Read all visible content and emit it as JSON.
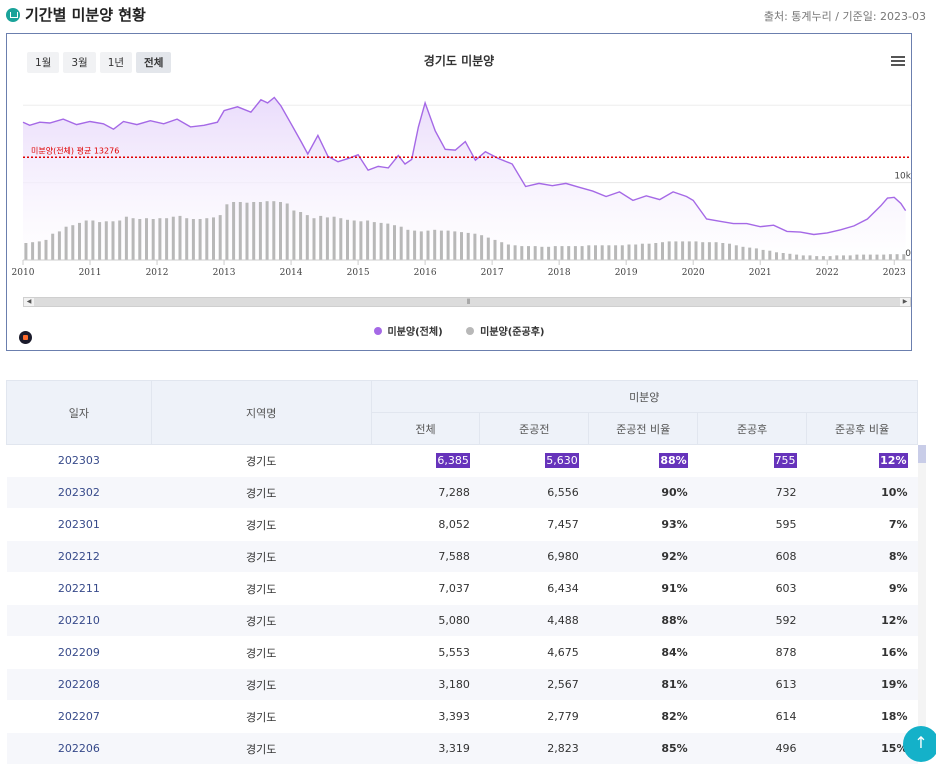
{
  "header": {
    "title": "기간별 미분양 현황",
    "source": "출처: 통계누리 / 기준일: 2023-03"
  },
  "range_buttons": [
    {
      "label": "1월",
      "active": false
    },
    {
      "label": "3월",
      "active": false
    },
    {
      "label": "1년",
      "active": false
    },
    {
      "label": "전체",
      "active": true
    }
  ],
  "colors": {
    "total": "#a569e6",
    "total_fill": "#eadcfb",
    "completed": "#b8b8b8",
    "average": "#e00000"
  },
  "chart_data": {
    "type": "area",
    "title": "경기도 미분양",
    "x_ticks": [
      "2010",
      "2011",
      "2012",
      "2013",
      "2014",
      "2015",
      "2016",
      "2017",
      "2018",
      "2019",
      "2020",
      "2021",
      "2022",
      "2023"
    ],
    "y_ticks": [
      {
        "label": "10k",
        "value": 10000
      },
      {
        "label": "0",
        "value": 0
      }
    ],
    "ylim": [
      0,
      23000
    ],
    "xlim": [
      2010.0,
      2023.25
    ],
    "average_line": {
      "label": "미분양(전체) 평균 13276",
      "value": 13276
    },
    "legend": [
      "미분양(전체)",
      "미분양(준공후)"
    ],
    "series": [
      {
        "name": "미분양(전체)",
        "type": "area",
        "x": [
          2010.0,
          2010.1,
          2010.25,
          2010.4,
          2010.6,
          2010.8,
          2011.0,
          2011.2,
          2011.35,
          2011.5,
          2011.7,
          2011.9,
          2012.1,
          2012.3,
          2012.5,
          2012.7,
          2012.9,
          2013.0,
          2013.2,
          2013.4,
          2013.55,
          2013.65,
          2013.75,
          2013.85,
          2014.0,
          2014.15,
          2014.25,
          2014.4,
          2014.55,
          2014.7,
          2014.85,
          2015.0,
          2015.15,
          2015.3,
          2015.45,
          2015.6,
          2015.7,
          2015.8,
          2015.9,
          2016.0,
          2016.15,
          2016.3,
          2016.45,
          2016.6,
          2016.75,
          2016.9,
          2017.1,
          2017.3,
          2017.5,
          2017.7,
          2017.9,
          2018.1,
          2018.3,
          2018.5,
          2018.7,
          2018.9,
          2019.1,
          2019.3,
          2019.5,
          2019.7,
          2019.9,
          2020.0,
          2020.2,
          2020.4,
          2020.6,
          2020.8,
          2021.0,
          2021.2,
          2021.4,
          2021.6,
          2021.8,
          2022.0,
          2022.2,
          2022.4,
          2022.6,
          2022.8,
          2022.9,
          2023.0,
          2023.1,
          2023.17
        ],
        "y": [
          17800,
          17400,
          17800,
          17700,
          18200,
          17500,
          17900,
          17600,
          16900,
          17900,
          17500,
          18000,
          17600,
          18200,
          17200,
          17400,
          17800,
          19300,
          19800,
          19100,
          20700,
          20300,
          21000,
          19900,
          17600,
          15300,
          13700,
          16100,
          13400,
          12700,
          13100,
          13600,
          11600,
          12100,
          11900,
          13500,
          12400,
          13000,
          17200,
          20300,
          16700,
          14300,
          14200,
          15300,
          12900,
          14000,
          13100,
          12400,
          9500,
          9900,
          9600,
          9900,
          9400,
          8900,
          8200,
          8800,
          7700,
          8300,
          7800,
          8800,
          8200,
          7700,
          5300,
          5000,
          4700,
          4700,
          4300,
          4500,
          3700,
          3600,
          3300,
          3500,
          3900,
          4400,
          5300,
          7000,
          8000,
          8100,
          7300,
          6385
        ]
      },
      {
        "name": "미분양(준공후)",
        "type": "bar",
        "x": [
          2010.05,
          2010.15,
          2010.25,
          2010.35,
          2010.45,
          2010.55,
          2010.65,
          2010.75,
          2010.85,
          2010.95,
          2011.05,
          2011.15,
          2011.25,
          2011.35,
          2011.45,
          2011.55,
          2011.65,
          2011.75,
          2011.85,
          2011.95,
          2012.05,
          2012.15,
          2012.25,
          2012.35,
          2012.45,
          2012.55,
          2012.65,
          2012.75,
          2012.85,
          2012.95,
          2013.05,
          2013.15,
          2013.25,
          2013.35,
          2013.45,
          2013.55,
          2013.65,
          2013.75,
          2013.85,
          2013.95,
          2014.05,
          2014.15,
          2014.25,
          2014.35,
          2014.45,
          2014.55,
          2014.65,
          2014.75,
          2014.85,
          2014.95,
          2015.05,
          2015.15,
          2015.25,
          2015.35,
          2015.45,
          2015.55,
          2015.65,
          2015.75,
          2015.85,
          2015.95,
          2016.05,
          2016.15,
          2016.25,
          2016.35,
          2016.45,
          2016.55,
          2016.65,
          2016.75,
          2016.85,
          2016.95,
          2017.05,
          2017.15,
          2017.25,
          2017.35,
          2017.45,
          2017.55,
          2017.65,
          2017.75,
          2017.85,
          2017.95,
          2018.05,
          2018.15,
          2018.25,
          2018.35,
          2018.45,
          2018.55,
          2018.65,
          2018.75,
          2018.85,
          2018.95,
          2019.05,
          2019.15,
          2019.25,
          2019.35,
          2019.45,
          2019.55,
          2019.65,
          2019.75,
          2019.85,
          2019.95,
          2020.05,
          2020.15,
          2020.25,
          2020.35,
          2020.45,
          2020.55,
          2020.65,
          2020.75,
          2020.85,
          2020.95,
          2021.05,
          2021.15,
          2021.25,
          2021.35,
          2021.45,
          2021.55,
          2021.65,
          2021.75,
          2021.85,
          2021.95,
          2022.05,
          2022.15,
          2022.25,
          2022.35,
          2022.45,
          2022.55,
          2022.65,
          2022.75,
          2022.85,
          2022.95,
          2023.05,
          2023.15
        ],
        "y": [
          2200,
          2300,
          2400,
          2600,
          3400,
          3700,
          4300,
          4500,
          4800,
          5100,
          5100,
          4900,
          5000,
          5000,
          5100,
          5600,
          5400,
          5300,
          5400,
          5300,
          5400,
          5400,
          5600,
          5700,
          5400,
          5300,
          5300,
          5400,
          5500,
          5800,
          7200,
          7500,
          7500,
          7400,
          7500,
          7500,
          7600,
          7600,
          7500,
          7300,
          6400,
          6200,
          5800,
          5400,
          5700,
          5500,
          5600,
          5400,
          5200,
          5100,
          5000,
          5100,
          4900,
          4800,
          4700,
          4500,
          4300,
          3900,
          3800,
          3700,
          3800,
          3900,
          3800,
          3800,
          3700,
          3600,
          3500,
          3400,
          3200,
          2900,
          2600,
          2300,
          2000,
          1900,
          1800,
          1800,
          1800,
          1700,
          1700,
          1800,
          1800,
          1800,
          1800,
          1800,
          1900,
          1900,
          1900,
          1900,
          1900,
          1900,
          2000,
          2000,
          2100,
          2100,
          2200,
          2300,
          2400,
          2400,
          2400,
          2400,
          2400,
          2300,
          2300,
          2300,
          2200,
          2100,
          1900,
          1700,
          1600,
          1500,
          1300,
          1200,
          1000,
          900,
          800,
          700,
          600,
          600,
          500,
          500,
          500,
          600,
          600,
          600,
          700,
          700,
          700,
          700,
          700,
          750,
          755,
          755
        ]
      }
    ]
  },
  "table": {
    "headers": {
      "date": "일자",
      "region": "지역명",
      "group": "미분양",
      "total": "전체",
      "pre": "준공전",
      "pre_ratio": "준공전 비율",
      "post": "준공후",
      "post_ratio": "준공후 비율"
    },
    "rows": [
      {
        "date": "202303",
        "region": "경기도",
        "total": "6,385",
        "pre": "5,630",
        "pre_ratio": "88%",
        "post": "755",
        "post_ratio": "12%"
      },
      {
        "date": "202302",
        "region": "경기도",
        "total": "7,288",
        "pre": "6,556",
        "pre_ratio": "90%",
        "post": "732",
        "post_ratio": "10%"
      },
      {
        "date": "202301",
        "region": "경기도",
        "total": "8,052",
        "pre": "7,457",
        "pre_ratio": "93%",
        "post": "595",
        "post_ratio": "7%"
      },
      {
        "date": "202212",
        "region": "경기도",
        "total": "7,588",
        "pre": "6,980",
        "pre_ratio": "92%",
        "post": "608",
        "post_ratio": "8%"
      },
      {
        "date": "202211",
        "region": "경기도",
        "total": "7,037",
        "pre": "6,434",
        "pre_ratio": "91%",
        "post": "603",
        "post_ratio": "9%"
      },
      {
        "date": "202210",
        "region": "경기도",
        "total": "5,080",
        "pre": "4,488",
        "pre_ratio": "88%",
        "post": "592",
        "post_ratio": "12%"
      },
      {
        "date": "202209",
        "region": "경기도",
        "total": "5,553",
        "pre": "4,675",
        "pre_ratio": "84%",
        "post": "878",
        "post_ratio": "16%"
      },
      {
        "date": "202208",
        "region": "경기도",
        "total": "3,180",
        "pre": "2,567",
        "pre_ratio": "81%",
        "post": "613",
        "post_ratio": "19%"
      },
      {
        "date": "202207",
        "region": "경기도",
        "total": "3,393",
        "pre": "2,779",
        "pre_ratio": "82%",
        "post": "614",
        "post_ratio": "18%"
      },
      {
        "date": "202206",
        "region": "경기도",
        "total": "3,319",
        "pre": "2,823",
        "pre_ratio": "85%",
        "post": "496",
        "post_ratio": "15%"
      }
    ]
  },
  "scroll_top_icon": "arrow-up-icon"
}
